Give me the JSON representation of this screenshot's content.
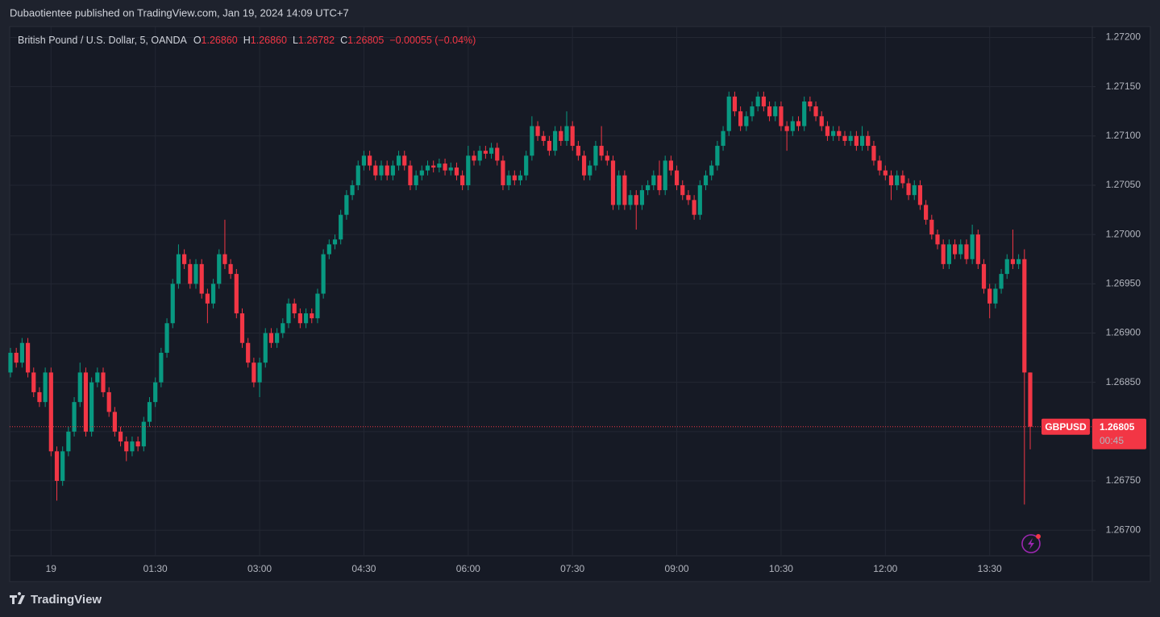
{
  "header": {
    "publisher": "Dubaotientee published on TradingView.com, Jan 19, 2024 14:09 UTC+7"
  },
  "footer": {
    "brand": "TradingView"
  },
  "chart_data": {
    "type": "candlestick",
    "title": "British Pound / U.S. Dollar, 5, OANDA",
    "ohlc_legend": {
      "open": {
        "letter": "O",
        "label": "1.26860"
      },
      "high": {
        "letter": "H",
        "label": "1.26860"
      },
      "low": {
        "letter": "L",
        "label": "1.26782"
      },
      "close": {
        "letter": "C",
        "label": "1.26805"
      },
      "change": "−0.00055 (−0.04%)"
    },
    "last_price": {
      "symbol": "GBPUSD",
      "label": "1.26805",
      "countdown": "00:45"
    },
    "up_color": "#089981",
    "down_color": "#f23645",
    "grid": true,
    "ylim": [
      1.26674,
      1.27211
    ],
    "yticks": [
      {
        "value": 1.267,
        "label": "1.26700"
      },
      {
        "value": 1.2675,
        "label": "1.26750"
      },
      {
        "value": 1.268,
        "label": "1.26800"
      },
      {
        "value": 1.2685,
        "label": "1.26850"
      },
      {
        "value": 1.269,
        "label": "1.26900"
      },
      {
        "value": 1.2695,
        "label": "1.26950"
      },
      {
        "value": 1.27,
        "label": "1.27000"
      },
      {
        "value": 1.2705,
        "label": "1.27050"
      },
      {
        "value": 1.271,
        "label": "1.27100"
      },
      {
        "value": 1.2715,
        "label": "1.27150"
      },
      {
        "value": 1.272,
        "label": "1.27200"
      }
    ],
    "categories": [
      null,
      null,
      null,
      null,
      null,
      null,
      null,
      "19",
      null,
      null,
      null,
      null,
      null,
      null,
      null,
      null,
      null,
      null,
      null,
      null,
      null,
      null,
      null,
      null,
      null,
      "01:30",
      null,
      null,
      null,
      null,
      null,
      null,
      null,
      null,
      null,
      null,
      null,
      null,
      null,
      null,
      null,
      null,
      null,
      "03:00",
      null,
      null,
      null,
      null,
      null,
      null,
      null,
      null,
      null,
      null,
      null,
      null,
      null,
      null,
      null,
      null,
      null,
      "04:30",
      null,
      null,
      null,
      null,
      null,
      null,
      null,
      null,
      null,
      null,
      null,
      null,
      null,
      null,
      null,
      null,
      null,
      "06:00",
      null,
      null,
      null,
      null,
      null,
      null,
      null,
      null,
      null,
      null,
      null,
      null,
      null,
      null,
      null,
      null,
      null,
      "07:30",
      null,
      null,
      null,
      null,
      null,
      null,
      null,
      null,
      null,
      null,
      null,
      null,
      null,
      null,
      null,
      null,
      null,
      "09:00",
      null,
      null,
      null,
      null,
      null,
      null,
      null,
      null,
      null,
      null,
      null,
      null,
      null,
      null,
      null,
      null,
      null,
      "10:30",
      null,
      null,
      null,
      null,
      null,
      null,
      null,
      null,
      null,
      null,
      null,
      null,
      null,
      null,
      null,
      null,
      null,
      "12:00",
      null,
      null,
      null,
      null,
      null,
      null,
      null,
      null,
      null,
      null,
      null,
      null,
      null,
      null,
      null,
      null,
      null,
      "13:30",
      null,
      null,
      null,
      null,
      null,
      null,
      null
    ],
    "open": [
      1.2686,
      1.2688,
      1.2687,
      1.2689,
      1.2686,
      1.2684,
      1.2683,
      1.2686,
      1.2678,
      1.2675,
      1.2678,
      1.268,
      1.2683,
      1.2686,
      1.268,
      1.2685,
      1.2686,
      1.2684,
      1.2682,
      1.268,
      1.2679,
      1.2678,
      1.2679,
      1.26785,
      1.2681,
      1.2683,
      1.2685,
      1.2688,
      1.2691,
      1.2695,
      1.2698,
      1.2697,
      1.2695,
      1.2697,
      1.2694,
      1.2693,
      1.2695,
      1.2698,
      1.2697,
      1.2696,
      1.2692,
      1.2689,
      1.2687,
      1.2685,
      1.2687,
      1.269,
      1.2689,
      1.269,
      1.2691,
      1.2693,
      1.2692,
      1.2691,
      1.2692,
      1.26915,
      1.2694,
      1.2698,
      1.2699,
      1.26995,
      1.2702,
      1.2704,
      1.2705,
      1.2707,
      1.2708,
      1.2707,
      1.2706,
      1.2707,
      1.2706,
      1.2707,
      1.2708,
      1.2707,
      1.2705,
      1.2706,
      1.27065,
      1.2707,
      1.27068,
      1.27072,
      1.27065,
      1.27068,
      1.2706,
      1.2705,
      1.2708,
      1.27075,
      1.27085,
      1.27082,
      1.27088,
      1.27075,
      1.2705,
      1.2706,
      1.27055,
      1.2706,
      1.2708,
      1.2711,
      1.271,
      1.27095,
      1.27085,
      1.27105,
      1.27095,
      1.2711,
      1.2709,
      1.2708,
      1.2706,
      1.2707,
      1.2709,
      1.2708,
      1.27075,
      1.2703,
      1.2706,
      1.2703,
      1.2704,
      1.2703,
      1.27045,
      1.2705,
      1.2706,
      1.27045,
      1.27075,
      1.27065,
      1.2705,
      1.2704,
      1.27035,
      1.2702,
      1.2705,
      1.2706,
      1.2707,
      1.2709,
      1.27105,
      1.2714,
      1.27125,
      1.2711,
      1.2712,
      1.2713,
      1.2714,
      1.2713,
      1.2712,
      1.2713,
      1.2711,
      1.27105,
      1.27115,
      1.2711,
      1.27135,
      1.2713,
      1.2712,
      1.2711,
      1.271,
      1.27105,
      1.271,
      1.27095,
      1.271,
      1.2709,
      1.271,
      1.2709,
      1.27075,
      1.27065,
      1.2706,
      1.2705,
      1.2706,
      1.27052,
      1.2704,
      1.2705,
      1.2703,
      1.27015,
      1.27,
      1.2699,
      1.2697,
      1.2699,
      1.2698,
      1.2699,
      1.26975,
      1.27,
      1.2697,
      1.26945,
      1.2693,
      1.26945,
      1.2696,
      1.26975,
      1.2697,
      1.26975,
      1.2686
    ],
    "high": [
      1.26885,
      1.26885,
      1.26895,
      1.26895,
      1.26865,
      1.26845,
      1.26865,
      1.26865,
      1.26785,
      1.26785,
      1.26805,
      1.26835,
      1.2687,
      1.26865,
      1.26855,
      1.26865,
      1.26865,
      1.26845,
      1.26825,
      1.26805,
      1.26795,
      1.26795,
      1.26795,
      1.26815,
      1.26835,
      1.26855,
      1.26885,
      1.26915,
      1.26955,
      1.2699,
      1.26985,
      1.26975,
      1.26975,
      1.26975,
      1.26945,
      1.26955,
      1.26985,
      1.27015,
      1.26975,
      1.26965,
      1.26925,
      1.26895,
      1.26875,
      1.26875,
      1.26905,
      1.26905,
      1.26905,
      1.26915,
      1.26935,
      1.26935,
      1.26925,
      1.26925,
      1.26925,
      1.26945,
      1.26985,
      1.26995,
      1.27,
      1.27025,
      1.27045,
      1.27055,
      1.27075,
      1.27085,
      1.27085,
      1.27075,
      1.27075,
      1.27075,
      1.27075,
      1.27085,
      1.27085,
      1.27075,
      1.27065,
      1.2707,
      1.27075,
      1.27075,
      1.27077,
      1.27077,
      1.27073,
      1.27073,
      1.27065,
      1.2709,
      1.27085,
      1.2709,
      1.2709,
      1.27093,
      1.27093,
      1.2708,
      1.27065,
      1.27065,
      1.27065,
      1.27085,
      1.2712,
      1.27115,
      1.27105,
      1.271,
      1.2711,
      1.2711,
      1.27125,
      1.27115,
      1.27095,
      1.27085,
      1.27075,
      1.27095,
      1.2711,
      1.27085,
      1.2708,
      1.27065,
      1.27065,
      1.27045,
      1.27045,
      1.2705,
      1.27055,
      1.27065,
      1.27075,
      1.2708,
      1.2708,
      1.2707,
      1.27055,
      1.27045,
      1.2704,
      1.27055,
      1.27065,
      1.27075,
      1.27095,
      1.2711,
      1.27145,
      1.27145,
      1.2713,
      1.27125,
      1.27135,
      1.27145,
      1.27145,
      1.27135,
      1.27135,
      1.27135,
      1.27115,
      1.2712,
      1.2712,
      1.2714,
      1.2714,
      1.27135,
      1.27125,
      1.27115,
      1.2711,
      1.2711,
      1.27105,
      1.27105,
      1.27105,
      1.2711,
      1.27105,
      1.27095,
      1.2708,
      1.2707,
      1.27065,
      1.27065,
      1.27065,
      1.27057,
      1.27055,
      1.27055,
      1.27035,
      1.2702,
      1.27005,
      1.26995,
      1.26995,
      1.26995,
      1.26995,
      1.26995,
      1.2701,
      1.27005,
      1.26975,
      1.2695,
      1.2695,
      1.26965,
      1.2698,
      1.27005,
      1.2698,
      1.26985,
      1.2686
    ],
    "low": [
      1.26855,
      1.26865,
      1.26865,
      1.26855,
      1.26835,
      1.26825,
      1.26825,
      1.26775,
      1.2673,
      1.26745,
      1.26775,
      1.26795,
      1.26825,
      1.26795,
      1.26795,
      1.26845,
      1.26835,
      1.26815,
      1.26795,
      1.26785,
      1.2677,
      1.26775,
      1.2678,
      1.2678,
      1.26805,
      1.26825,
      1.26845,
      1.26875,
      1.26905,
      1.26945,
      1.26965,
      1.26945,
      1.26945,
      1.26935,
      1.2691,
      1.26925,
      1.26945,
      1.26965,
      1.26955,
      1.26915,
      1.26885,
      1.26865,
      1.26845,
      1.26835,
      1.26865,
      1.26885,
      1.26885,
      1.26895,
      1.26905,
      1.26915,
      1.26905,
      1.26905,
      1.2691,
      1.2691,
      1.26935,
      1.26975,
      1.26985,
      1.2699,
      1.27015,
      1.27035,
      1.27045,
      1.27065,
      1.27065,
      1.27055,
      1.27055,
      1.27055,
      1.27055,
      1.27065,
      1.27065,
      1.27045,
      1.27045,
      1.27055,
      1.2706,
      1.27063,
      1.27063,
      1.2706,
      1.2706,
      1.27055,
      1.27045,
      1.27045,
      1.2707,
      1.2707,
      1.27077,
      1.27077,
      1.2707,
      1.27045,
      1.27045,
      1.2705,
      1.2705,
      1.27055,
      1.27075,
      1.27095,
      1.2709,
      1.2708,
      1.2708,
      1.2709,
      1.2709,
      1.27085,
      1.27075,
      1.27055,
      1.27055,
      1.27065,
      1.27075,
      1.2707,
      1.27025,
      1.27025,
      1.27025,
      1.27025,
      1.27005,
      1.27025,
      1.2704,
      1.27045,
      1.2704,
      1.2704,
      1.2706,
      1.27045,
      1.27035,
      1.2703,
      1.27015,
      1.27015,
      1.27045,
      1.27055,
      1.27065,
      1.27085,
      1.271,
      1.2712,
      1.27105,
      1.27105,
      1.27115,
      1.27125,
      1.27125,
      1.27115,
      1.27115,
      1.27105,
      1.27085,
      1.271,
      1.27105,
      1.27105,
      1.27125,
      1.27115,
      1.27105,
      1.27095,
      1.27095,
      1.27095,
      1.2709,
      1.2709,
      1.27085,
      1.27085,
      1.27085,
      1.2707,
      1.2706,
      1.27055,
      1.27035,
      1.27045,
      1.27047,
      1.27035,
      1.27035,
      1.27025,
      1.2701,
      1.26995,
      1.26985,
      1.26965,
      1.26965,
      1.26975,
      1.26975,
      1.2697,
      1.2697,
      1.26965,
      1.2694,
      1.26915,
      1.26925,
      1.2694,
      1.26955,
      1.26965,
      1.26965,
      1.26726,
      1.26782
    ],
    "close": [
      1.2688,
      1.2687,
      1.2689,
      1.2686,
      1.2684,
      1.2683,
      1.2686,
      1.2678,
      1.2675,
      1.2678,
      1.268,
      1.2683,
      1.2686,
      1.268,
      1.2685,
      1.2686,
      1.2684,
      1.2682,
      1.268,
      1.2679,
      1.2678,
      1.2679,
      1.26785,
      1.2681,
      1.2683,
      1.2685,
      1.2688,
      1.2691,
      1.2695,
      1.2698,
      1.2697,
      1.2695,
      1.2697,
      1.2694,
      1.2693,
      1.2695,
      1.2698,
      1.2697,
      1.2696,
      1.2692,
      1.2689,
      1.2687,
      1.2685,
      1.2687,
      1.269,
      1.2689,
      1.269,
      1.2691,
      1.2693,
      1.2692,
      1.2691,
      1.2692,
      1.26915,
      1.2694,
      1.2698,
      1.2699,
      1.26995,
      1.2702,
      1.2704,
      1.2705,
      1.2707,
      1.2708,
      1.2707,
      1.2706,
      1.2707,
      1.2706,
      1.2707,
      1.2708,
      1.2707,
      1.2705,
      1.2706,
      1.27065,
      1.2707,
      1.27068,
      1.27072,
      1.27065,
      1.27068,
      1.2706,
      1.2705,
      1.2708,
      1.27075,
      1.27085,
      1.27082,
      1.27088,
      1.27075,
      1.2705,
      1.2706,
      1.27055,
      1.2706,
      1.2708,
      1.2711,
      1.271,
      1.27095,
      1.27085,
      1.27105,
      1.27095,
      1.2711,
      1.2709,
      1.2708,
      1.2706,
      1.2707,
      1.2709,
      1.2708,
      1.27075,
      1.2703,
      1.2706,
      1.2703,
      1.2704,
      1.2703,
      1.27045,
      1.2705,
      1.2706,
      1.27045,
      1.27075,
      1.27065,
      1.2705,
      1.2704,
      1.27035,
      1.2702,
      1.2705,
      1.2706,
      1.2707,
      1.2709,
      1.27105,
      1.2714,
      1.27125,
      1.2711,
      1.2712,
      1.2713,
      1.2714,
      1.2713,
      1.2712,
      1.2713,
      1.2711,
      1.27105,
      1.27115,
      1.2711,
      1.27135,
      1.2713,
      1.2712,
      1.2711,
      1.271,
      1.27105,
      1.271,
      1.27095,
      1.271,
      1.2709,
      1.271,
      1.2709,
      1.27075,
      1.27065,
      1.2706,
      1.2705,
      1.2706,
      1.27052,
      1.2704,
      1.2705,
      1.2703,
      1.27015,
      1.27,
      1.2699,
      1.2697,
      1.2699,
      1.2698,
      1.2699,
      1.26975,
      1.27,
      1.2697,
      1.26945,
      1.2693,
      1.26945,
      1.2696,
      1.26975,
      1.2697,
      1.26975,
      1.2686,
      1.26805
    ]
  }
}
